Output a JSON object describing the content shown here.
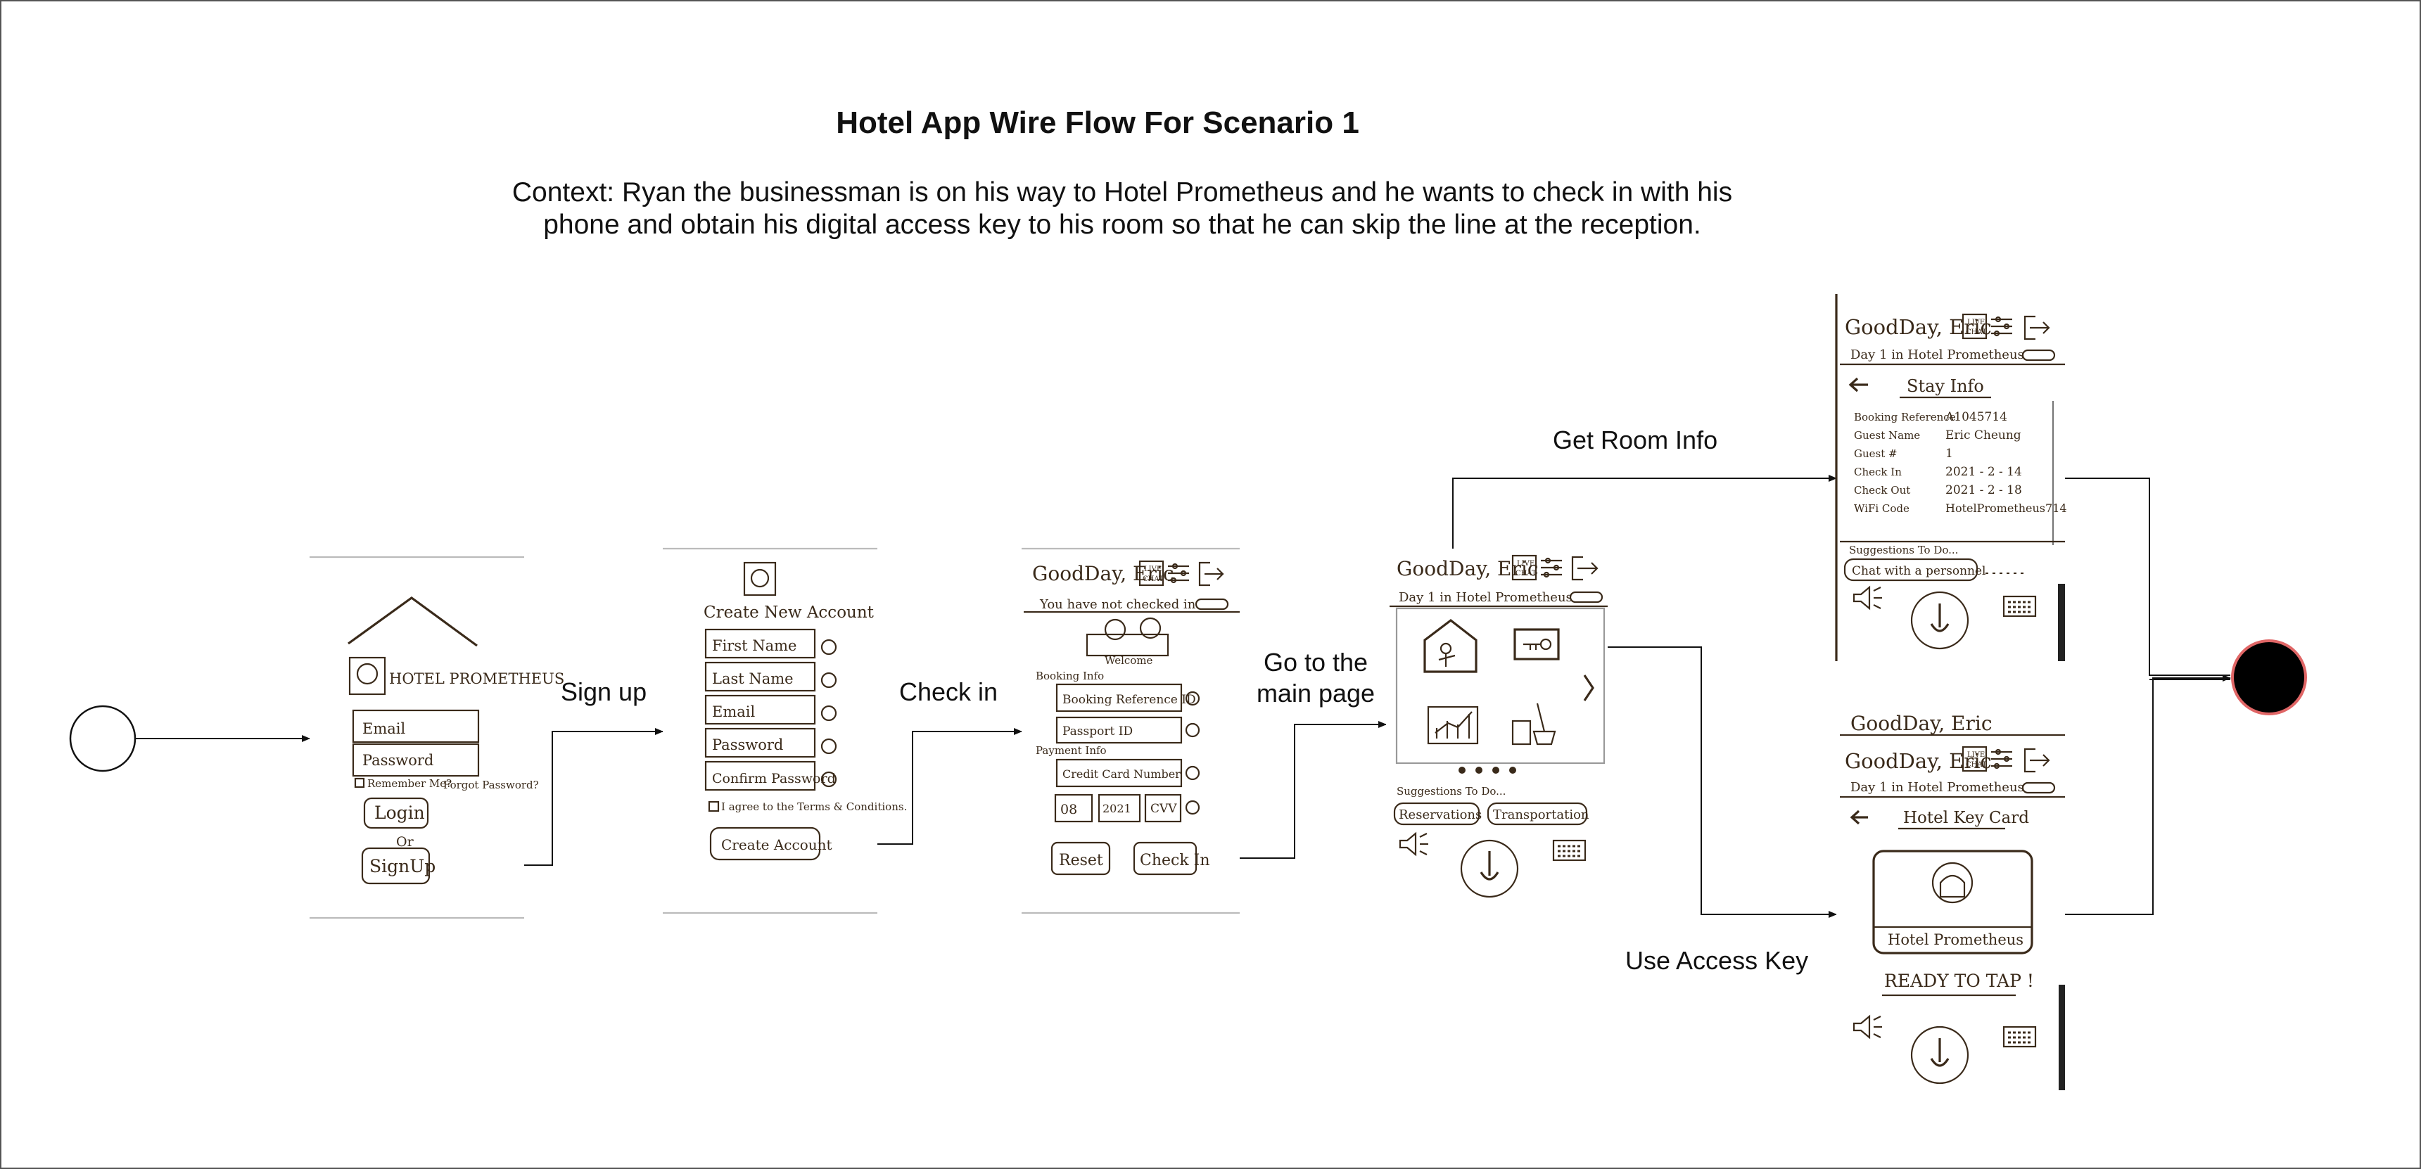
{
  "title": "Hotel App Wire Flow For Scenario 1",
  "context": {
    "line1": "Context: Ryan the businessman is on his way to Hotel Prometheus and he wants to check in with his",
    "line2": "phone and obtain his digital access key to his room so that he can skip the line at the reception."
  },
  "edges": {
    "sign_up": "Sign up",
    "check_in": "Check in",
    "main_page_1": "Go to the",
    "main_page_2": "main page",
    "room_info": "Get Room Info",
    "access_key": "Use Access Key"
  },
  "screens": {
    "login": {
      "brand": "HOTEL PROMETHEUS",
      "email": "Email",
      "password": "Password",
      "remember": "Remember Me?",
      "forgot": "Forgot Password?",
      "login": "Login",
      "or": "Or",
      "signup": "SignUp"
    },
    "signup": {
      "title": "Create New Account",
      "first": "First Name",
      "last": "Last Name",
      "email": "Email",
      "password": "Password",
      "confirm": "Confirm Password",
      "agree": "I agree to the Terms & Conditions.",
      "create": "Create Account"
    },
    "checkin": {
      "greeting": "GoodDay, Eric",
      "live": "LIVE",
      "chat": "CHAT",
      "notice": "You have not checked in",
      "welcome": "Welcome",
      "booking_info": "Booking Info",
      "booking_ref": "Booking Reference ID",
      "passport": "Passport ID",
      "payment_info": "Payment Info",
      "card": "Credit Card Number",
      "month": "08",
      "year": "2021",
      "cvv": "CVV",
      "reset": "Reset",
      "checkin": "Check In"
    },
    "main": {
      "greeting": "GoodDay, Eric",
      "live": "LIVE",
      "chat": "CHAT",
      "day": "Day 1 in Hotel Prometheus",
      "suggestions": "Suggestions To Do...",
      "chip1": "Reservations",
      "chip2": "Transportation"
    },
    "stay": {
      "greeting": "GoodDay, Eric",
      "live": "LIVE",
      "chat": "CHAT",
      "day": "Day 1 in Hotel Prometheus",
      "title": "Stay Info",
      "rows": [
        {
          "k": "Booking Reference",
          "v": "A1045714"
        },
        {
          "k": "Guest Name",
          "v": "Eric Cheung"
        },
        {
          "k": "Guest #",
          "v": "1"
        },
        {
          "k": "Check In",
          "v": "2021 - 2 - 14"
        },
        {
          "k": "Check Out",
          "v": "2021 - 2 - 18"
        },
        {
          "k": "WiFi Code",
          "v": "HotelPrometheus714"
        }
      ],
      "suggestions": "Suggestions To Do...",
      "chip1": "Chat with a personnel"
    },
    "key": {
      "greeting": "GoodDay, Eric",
      "live": "LIVE",
      "chat": "CHAT",
      "day": "Day 1 in Hotel Prometheus",
      "title": "Hotel Key Card",
      "card_name": "Hotel Prometheus",
      "ready": "READY TO TAP !"
    }
  }
}
